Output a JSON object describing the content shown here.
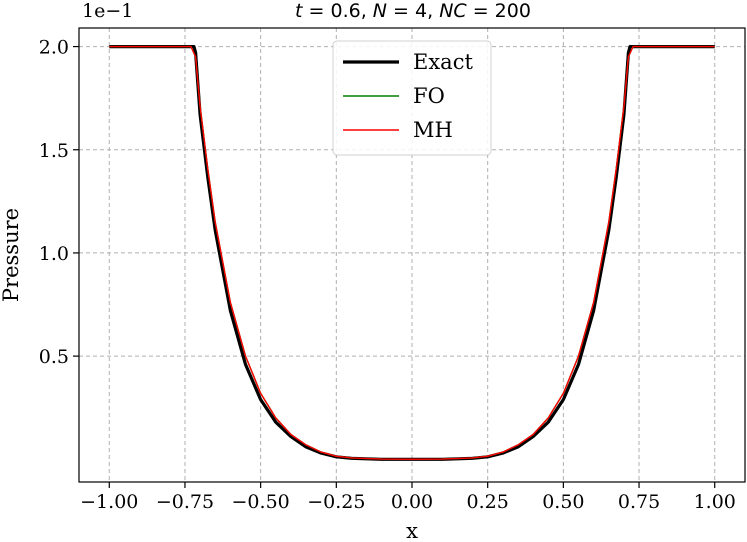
{
  "chart_data": {
    "type": "line",
    "title": "t = 0.6, N = 4, NC = 200",
    "xlabel": "x",
    "ylabel": "Pressure",
    "y_offset_text": "1e−1",
    "xlim": [
      -1.1,
      1.1
    ],
    "ylim": [
      -0.11,
      2.09
    ],
    "x_ticks": [
      -1.0,
      -0.75,
      -0.5,
      -0.25,
      0.0,
      0.25,
      0.5,
      0.75,
      1.0
    ],
    "x_tick_labels": [
      "−1.00",
      "−0.75",
      "−0.50",
      "−0.25",
      "0.00",
      "0.25",
      "0.50",
      "0.75",
      "1.00"
    ],
    "y_ticks": [
      0.5,
      1.0,
      1.5,
      2.0
    ],
    "y_tick_labels": [
      "0.5",
      "1.0",
      "1.5",
      "2.0"
    ],
    "grid": true,
    "legend_position": "top-center",
    "series": [
      {
        "name": "Exact",
        "color": "#000000",
        "x": [
          -1.0,
          -0.72,
          -0.715,
          -0.7,
          -0.675,
          -0.65,
          -0.6,
          -0.55,
          -0.5,
          -0.45,
          -0.4,
          -0.35,
          -0.3,
          -0.25,
          -0.2,
          -0.1,
          0.0,
          0.1,
          0.2,
          0.25,
          0.3,
          0.35,
          0.4,
          0.45,
          0.5,
          0.55,
          0.6,
          0.65,
          0.675,
          0.7,
          0.715,
          0.72,
          1.0
        ],
        "y": [
          2.0,
          2.0,
          1.97,
          1.67,
          1.37,
          1.11,
          0.72,
          0.46,
          0.29,
          0.18,
          0.11,
          0.06,
          0.03,
          0.012,
          0.005,
          0.0,
          0.0,
          0.0,
          0.005,
          0.012,
          0.03,
          0.06,
          0.11,
          0.18,
          0.29,
          0.46,
          0.72,
          1.11,
          1.37,
          1.67,
          1.97,
          2.0,
          2.0
        ]
      },
      {
        "name": "FO",
        "color": "#008000",
        "x": [
          -1.0,
          -0.73,
          -0.715,
          -0.7,
          -0.675,
          -0.65,
          -0.6,
          -0.55,
          -0.5,
          -0.45,
          -0.4,
          -0.35,
          -0.3,
          -0.25,
          -0.2,
          -0.1,
          0.0,
          0.1,
          0.2,
          0.25,
          0.3,
          0.35,
          0.4,
          0.45,
          0.5,
          0.55,
          0.6,
          0.65,
          0.675,
          0.7,
          0.715,
          0.73,
          1.0
        ],
        "y": [
          2.0,
          2.0,
          1.95,
          1.71,
          1.41,
          1.15,
          0.76,
          0.5,
          0.32,
          0.2,
          0.12,
          0.07,
          0.035,
          0.015,
          0.007,
          0.001,
          0.0,
          0.001,
          0.007,
          0.015,
          0.035,
          0.07,
          0.12,
          0.2,
          0.32,
          0.5,
          0.76,
          1.15,
          1.41,
          1.71,
          1.95,
          2.0,
          2.0
        ]
      },
      {
        "name": "MH",
        "color": "#ff0000",
        "x": [
          -1.0,
          -0.73,
          -0.715,
          -0.7,
          -0.675,
          -0.65,
          -0.6,
          -0.55,
          -0.5,
          -0.45,
          -0.4,
          -0.35,
          -0.3,
          -0.25,
          -0.2,
          -0.1,
          0.0,
          0.1,
          0.2,
          0.25,
          0.3,
          0.35,
          0.4,
          0.45,
          0.5,
          0.55,
          0.6,
          0.65,
          0.675,
          0.7,
          0.715,
          0.73,
          1.0
        ],
        "y": [
          2.0,
          2.0,
          1.95,
          1.71,
          1.41,
          1.15,
          0.76,
          0.5,
          0.32,
          0.2,
          0.12,
          0.07,
          0.035,
          0.015,
          0.007,
          0.001,
          0.0,
          0.001,
          0.007,
          0.015,
          0.035,
          0.07,
          0.12,
          0.2,
          0.32,
          0.5,
          0.76,
          1.15,
          1.41,
          1.71,
          1.95,
          2.0,
          2.0
        ]
      }
    ]
  }
}
